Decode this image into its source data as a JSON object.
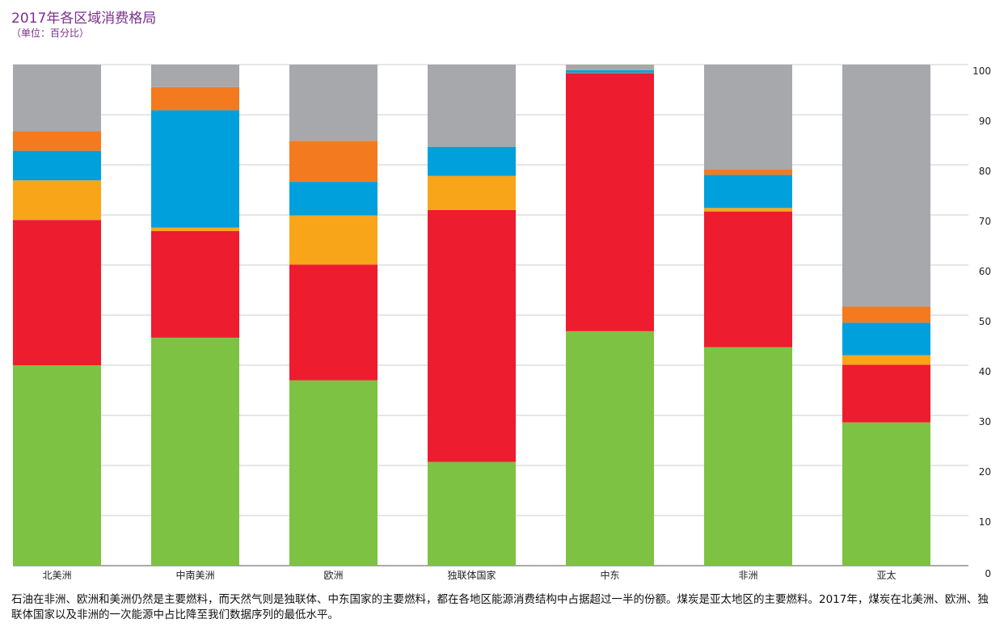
{
  "title": "2017年各区域消费格局",
  "subtitle": "（单位：百分比）",
  "caption": "石油在非洲、欧洲和美洲仍然是主要燃料，而天然气则是独联体、中东国家的主要燃料，都在各地区能源消费结构中占据超过一半的份额。煤炭是亚太地区的主要燃料。2017年，煤炭在北美洲、欧洲、独联体国家以及非洲的一次能源中占比降至我们数据序列的最低水平。",
  "chart_data": {
    "type": "bar",
    "stacked": true,
    "title": "2017年各区域消费格局",
    "subtitle": "（单位：百分比）",
    "categories": [
      "北美洲",
      "中南美洲",
      "欧洲",
      "独联体国家",
      "中东",
      "非洲",
      "亚太"
    ],
    "series": [
      {
        "color": "#7dc242",
        "values": [
          40,
          45.5,
          37,
          20.7,
          46.8,
          43.6,
          28.6
        ]
      },
      {
        "color": "#ed1c2e",
        "values": [
          29,
          21.3,
          23.1,
          50.3,
          51.5,
          27.1,
          11.5
        ]
      },
      {
        "color": "#f9a51a",
        "values": [
          7.9,
          0.7,
          9.8,
          6.8,
          0.1,
          0.7,
          1.9
        ]
      },
      {
        "color": "#00a0dc",
        "values": [
          5.9,
          23.4,
          6.7,
          5.8,
          0.5,
          6.6,
          6.5
        ]
      },
      {
        "color": "#f47a20",
        "values": [
          3.9,
          4.6,
          8.2,
          0,
          0,
          1.1,
          3.2
        ]
      },
      {
        "color": "#a7a8ac",
        "values": [
          13.3,
          4.5,
          15.2,
          16.4,
          1.1,
          20.9,
          48.3
        ]
      }
    ],
    "y_ticks": [
      "0",
      "10",
      "20",
      "30",
      "40",
      "50",
      "60",
      "70",
      "80",
      "90",
      "100"
    ],
    "ylim": [
      0,
      100
    ],
    "grid": true,
    "y_axis_side": "right",
    "legend": "none"
  }
}
